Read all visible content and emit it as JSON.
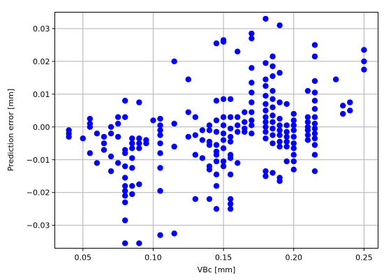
{
  "chart_data": {
    "type": "scatter",
    "xlabel": "VBc [mm]",
    "ylabel": "Prediction error [mm]",
    "xlim": [
      0.03,
      0.26
    ],
    "ylim": [
      -0.037,
      0.035
    ],
    "grid": true,
    "marker_color": "#0000ff",
    "xticks": [
      0.05,
      0.1,
      0.15,
      0.2,
      0.25
    ],
    "xtick_labels": [
      "0.05",
      "0.10",
      "0.15",
      "0.20",
      "0.25"
    ],
    "yticks": [
      -0.03,
      -0.02,
      -0.01,
      0.0,
      0.01,
      0.02,
      0.03
    ],
    "ytick_labels": [
      "−0.03",
      "−0.02",
      "−0.01",
      "0.00",
      "0.01",
      "0.02",
      "0.03"
    ],
    "series": [
      {
        "points": [
          [
            0.04,
            -0.001
          ],
          [
            0.04,
            -0.002
          ],
          [
            0.04,
            -0.003
          ],
          [
            0.05,
            -0.0035
          ],
          [
            0.055,
            0.0025
          ],
          [
            0.055,
            0.001
          ],
          [
            0.055,
            0.0
          ],
          [
            0.055,
            -0.008
          ],
          [
            0.06,
            -0.002
          ],
          [
            0.06,
            -0.011
          ],
          [
            0.065,
            -0.003
          ],
          [
            0.065,
            -0.005
          ],
          [
            0.065,
            -0.007
          ],
          [
            0.07,
            0.0
          ],
          [
            0.07,
            -0.002
          ],
          [
            0.07,
            -0.009
          ],
          [
            0.07,
            -0.0135
          ],
          [
            0.075,
            0.003
          ],
          [
            0.075,
            0.001
          ],
          [
            0.075,
            -0.003
          ],
          [
            0.075,
            -0.011
          ],
          [
            0.08,
            0.008
          ],
          [
            0.08,
            0.003
          ],
          [
            0.08,
            -0.007
          ],
          [
            0.08,
            -0.008
          ],
          [
            0.08,
            -0.012
          ],
          [
            0.08,
            -0.0155
          ],
          [
            0.08,
            -0.018
          ],
          [
            0.08,
            -0.0195
          ],
          [
            0.08,
            -0.021
          ],
          [
            0.08,
            -0.023
          ],
          [
            0.08,
            -0.0285
          ],
          [
            0.08,
            -0.0355
          ],
          [
            0.085,
            -0.0035
          ],
          [
            0.085,
            -0.005
          ],
          [
            0.085,
            -0.0065
          ],
          [
            0.085,
            -0.0095
          ],
          [
            0.085,
            -0.0125
          ],
          [
            0.085,
            -0.018
          ],
          [
            0.085,
            -0.0205
          ],
          [
            0.09,
            0.0075
          ],
          [
            0.09,
            -0.0035
          ],
          [
            0.09,
            -0.005
          ],
          [
            0.09,
            -0.0065
          ],
          [
            0.09,
            -0.0175
          ],
          [
            0.09,
            -0.0355
          ],
          [
            0.095,
            -0.004
          ],
          [
            0.095,
            -0.005
          ],
          [
            0.1,
            0.002
          ],
          [
            0.105,
            0.0025
          ],
          [
            0.105,
            0.0005
          ],
          [
            0.105,
            -0.001
          ],
          [
            0.105,
            -0.0025
          ],
          [
            0.105,
            -0.005
          ],
          [
            0.105,
            -0.008
          ],
          [
            0.105,
            -0.0125
          ],
          [
            0.105,
            -0.0195
          ],
          [
            0.105,
            -0.033
          ],
          [
            0.115,
            0.02
          ],
          [
            0.115,
            0.001
          ],
          [
            0.115,
            -0.006
          ],
          [
            0.115,
            -0.0325
          ],
          [
            0.125,
            0.0145
          ],
          [
            0.125,
            0.0045
          ],
          [
            0.125,
            -0.003
          ],
          [
            0.13,
            0.003
          ],
          [
            0.13,
            -0.0025
          ],
          [
            0.13,
            -0.0085
          ],
          [
            0.13,
            -0.022
          ],
          [
            0.135,
            -0.001
          ],
          [
            0.135,
            -0.004
          ],
          [
            0.135,
            -0.0095
          ],
          [
            0.14,
            0.0005
          ],
          [
            0.14,
            -0.001
          ],
          [
            0.14,
            -0.0045
          ],
          [
            0.14,
            -0.0055
          ],
          [
            0.14,
            -0.012
          ],
          [
            0.14,
            -0.013
          ],
          [
            0.14,
            -0.022
          ],
          [
            0.145,
            0.008
          ],
          [
            0.145,
            0.002
          ],
          [
            0.145,
            -0.0015
          ],
          [
            0.145,
            -0.0055
          ],
          [
            0.145,
            -0.0075
          ],
          [
            0.145,
            -0.0085
          ],
          [
            0.145,
            -0.0105
          ],
          [
            0.145,
            -0.0145
          ],
          [
            0.145,
            -0.018
          ],
          [
            0.145,
            -0.025
          ],
          [
            0.145,
            0.0255
          ],
          [
            0.15,
            0.0265
          ],
          [
            0.15,
            0.026
          ],
          [
            0.15,
            0.0085
          ],
          [
            0.15,
            0.003
          ],
          [
            0.15,
            0.0005
          ],
          [
            0.15,
            -0.002
          ],
          [
            0.15,
            -0.004
          ],
          [
            0.15,
            -0.0065
          ],
          [
            0.15,
            -0.0105
          ],
          [
            0.15,
            -0.012
          ],
          [
            0.155,
            0.0085
          ],
          [
            0.155,
            0.003
          ],
          [
            0.155,
            -0.0005
          ],
          [
            0.155,
            -0.003
          ],
          [
            0.155,
            -0.0045
          ],
          [
            0.155,
            -0.0085
          ],
          [
            0.155,
            -0.0095
          ],
          [
            0.155,
            -0.0145
          ],
          [
            0.155,
            -0.022
          ],
          [
            0.155,
            -0.0235
          ],
          [
            0.155,
            -0.025
          ],
          [
            0.16,
            0.023
          ],
          [
            0.16,
            0.003
          ],
          [
            0.16,
            0.0005
          ],
          [
            0.16,
            -0.0015
          ],
          [
            0.16,
            -0.011
          ],
          [
            0.165,
            0.0045
          ],
          [
            0.165,
            0.0015
          ],
          [
            0.165,
            -0.0005
          ],
          [
            0.165,
            -0.0015
          ],
          [
            0.17,
            0.0285
          ],
          [
            0.17,
            0.027
          ],
          [
            0.17,
            0.018
          ],
          [
            0.17,
            0.0135
          ],
          [
            0.17,
            0.0105
          ],
          [
            0.17,
            0.0075
          ],
          [
            0.17,
            0.0045
          ],
          [
            0.17,
            0.002
          ],
          [
            0.17,
            0.0005
          ],
          [
            0.17,
            -0.002
          ],
          [
            0.18,
            0.033
          ],
          [
            0.18,
            0.0195
          ],
          [
            0.18,
            0.0145
          ],
          [
            0.18,
            0.0125
          ],
          [
            0.18,
            0.0095
          ],
          [
            0.18,
            0.007
          ],
          [
            0.18,
            0.005
          ],
          [
            0.18,
            0.003
          ],
          [
            0.18,
            0.0015
          ],
          [
            0.18,
            0.0
          ],
          [
            0.18,
            -0.0015
          ],
          [
            0.18,
            -0.0035
          ],
          [
            0.18,
            -0.0135
          ],
          [
            0.18,
            -0.015
          ],
          [
            0.185,
            0.0215
          ],
          [
            0.185,
            0.0185
          ],
          [
            0.185,
            0.0155
          ],
          [
            0.185,
            0.011
          ],
          [
            0.185,
            0.0085
          ],
          [
            0.185,
            0.006
          ],
          [
            0.185,
            0.0035
          ],
          [
            0.185,
            0.0015
          ],
          [
            0.185,
            -0.0005
          ],
          [
            0.185,
            -0.0025
          ],
          [
            0.185,
            -0.005
          ],
          [
            0.185,
            -0.014
          ],
          [
            0.19,
            0.031
          ],
          [
            0.19,
            0.0165
          ],
          [
            0.19,
            0.0075
          ],
          [
            0.19,
            0.0025
          ],
          [
            0.19,
            0.0005
          ],
          [
            0.19,
            -0.001
          ],
          [
            0.19,
            -0.0025
          ],
          [
            0.19,
            -0.0045
          ],
          [
            0.19,
            -0.006
          ],
          [
            0.19,
            -0.0155
          ],
          [
            0.19,
            -0.0165
          ],
          [
            0.195,
            0.007
          ],
          [
            0.195,
            0.0005
          ],
          [
            0.195,
            -0.0015
          ],
          [
            0.195,
            -0.003
          ],
          [
            0.195,
            -0.0045
          ],
          [
            0.195,
            -0.006
          ],
          [
            0.195,
            -0.0105
          ],
          [
            0.2,
            0.004
          ],
          [
            0.2,
            0.002
          ],
          [
            0.2,
            0.0005
          ],
          [
            0.2,
            -0.001
          ],
          [
            0.2,
            -0.003
          ],
          [
            0.2,
            -0.005
          ],
          [
            0.2,
            -0.0065
          ],
          [
            0.2,
            -0.0085
          ],
          [
            0.2,
            -0.0105
          ],
          [
            0.2,
            -0.013
          ],
          [
            0.21,
            0.011
          ],
          [
            0.21,
            0.003
          ],
          [
            0.21,
            0.0015
          ],
          [
            0.21,
            0.0
          ],
          [
            0.21,
            -0.001
          ],
          [
            0.21,
            -0.0025
          ],
          [
            0.21,
            -0.004
          ],
          [
            0.215,
            0.025
          ],
          [
            0.215,
            0.0215
          ],
          [
            0.215,
            0.014
          ],
          [
            0.215,
            0.0105
          ],
          [
            0.215,
            0.008
          ],
          [
            0.215,
            0.0055
          ],
          [
            0.215,
            0.003
          ],
          [
            0.215,
            0.001
          ],
          [
            0.215,
            -0.0005
          ],
          [
            0.215,
            -0.002
          ],
          [
            0.215,
            -0.0035
          ],
          [
            0.215,
            -0.0055
          ],
          [
            0.215,
            -0.0085
          ],
          [
            0.215,
            -0.0135
          ],
          [
            0.23,
            0.0145
          ],
          [
            0.235,
            0.0065
          ],
          [
            0.235,
            0.004
          ],
          [
            0.24,
            0.0075
          ],
          [
            0.24,
            0.005
          ],
          [
            0.25,
            0.0235
          ],
          [
            0.25,
            0.02
          ],
          [
            0.25,
            0.0175
          ]
        ]
      }
    ]
  }
}
